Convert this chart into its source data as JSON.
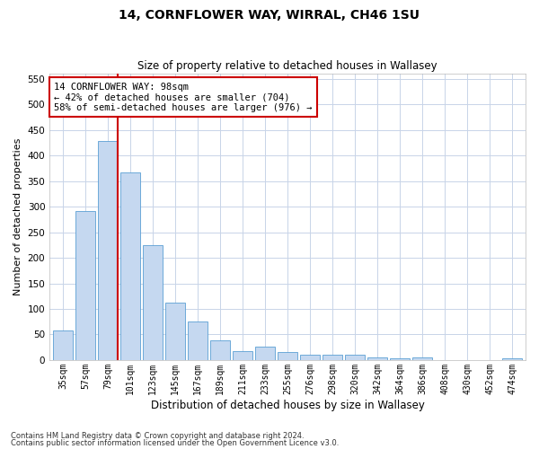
{
  "title": "14, CORNFLOWER WAY, WIRRAL, CH46 1SU",
  "subtitle": "Size of property relative to detached houses in Wallasey",
  "xlabel": "Distribution of detached houses by size in Wallasey",
  "ylabel": "Number of detached properties",
  "categories": [
    "35sqm",
    "57sqm",
    "79sqm",
    "101sqm",
    "123sqm",
    "145sqm",
    "167sqm",
    "189sqm",
    "211sqm",
    "233sqm",
    "255sqm",
    "276sqm",
    "298sqm",
    "320sqm",
    "342sqm",
    "364sqm",
    "386sqm",
    "408sqm",
    "430sqm",
    "452sqm",
    "474sqm"
  ],
  "values": [
    57,
    292,
    428,
    367,
    225,
    113,
    75,
    38,
    17,
    27,
    15,
    10,
    10,
    10,
    5,
    3,
    6,
    0,
    0,
    0,
    3
  ],
  "bar_color": "#c5d8f0",
  "bar_edge_color": "#5a9fd4",
  "vline_color": "#cc0000",
  "annotation_text": "14 CORNFLOWER WAY: 98sqm\n← 42% of detached houses are smaller (704)\n58% of semi-detached houses are larger (976) →",
  "annotation_box_color": "#ffffff",
  "annotation_box_edge": "#cc0000",
  "ylim": [
    0,
    560
  ],
  "yticks": [
    0,
    50,
    100,
    150,
    200,
    250,
    300,
    350,
    400,
    450,
    500,
    550
  ],
  "footnote1": "Contains HM Land Registry data © Crown copyright and database right 2024.",
  "footnote2": "Contains public sector information licensed under the Open Government Licence v3.0.",
  "background_color": "#ffffff",
  "grid_color": "#c8d4e8"
}
